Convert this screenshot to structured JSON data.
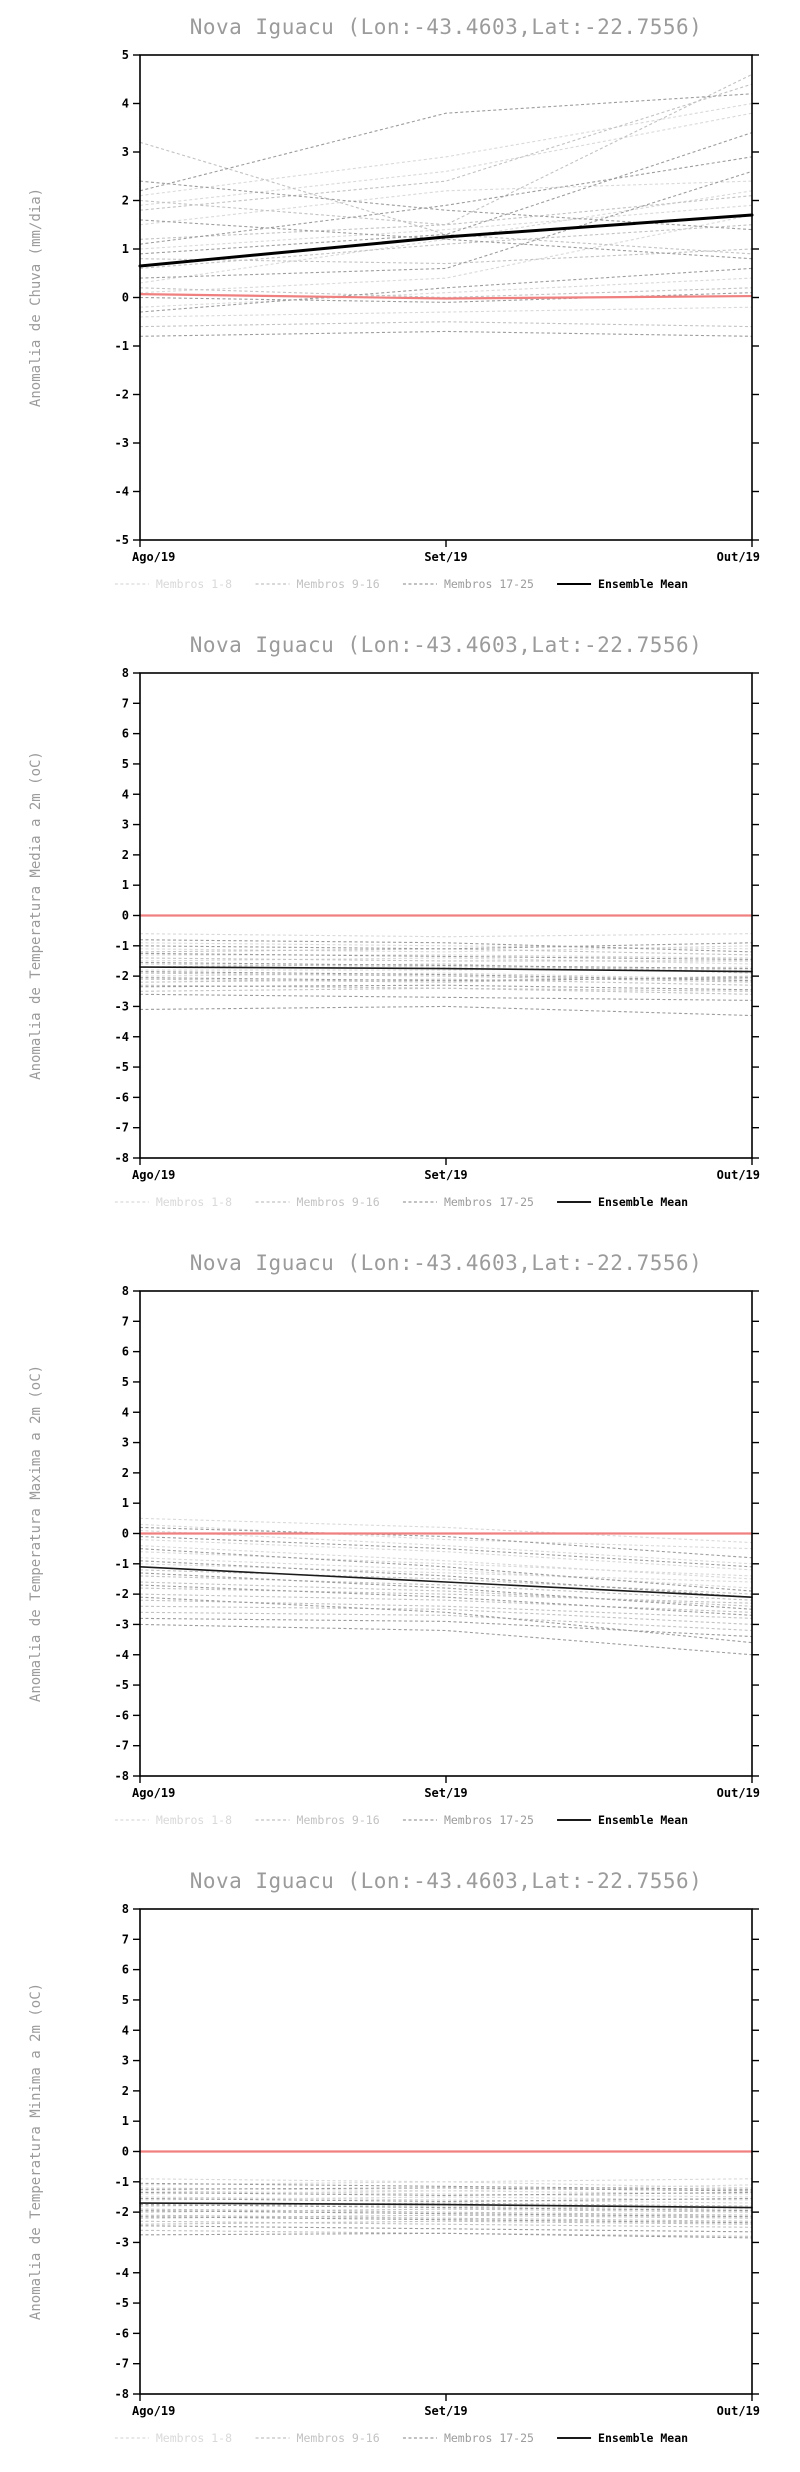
{
  "station": {
    "name": "Nova Iguacu",
    "lon": "-43.4603",
    "lat": "-22.7556"
  },
  "colors": {
    "title": "#9b9b9b",
    "axis": "#000000",
    "reference_red": "#f08080",
    "mean_black": "#000000",
    "group1": "#d9d9d9",
    "group2": "#c2c2c2",
    "group3": "#9c9c9c"
  },
  "chart_data": [
    {
      "type": "line",
      "title": "Nova Iguacu (Lon:-43.4603,Lat:-22.7556)",
      "ylabel": "Anomalia de Chuva (mm/dia)",
      "x_labels": [
        "Ago/19",
        "Set/19",
        "Out/19"
      ],
      "ylim": [
        -5,
        5
      ],
      "ytick_step": 1,
      "grid": false,
      "legend_position": "bottom",
      "groups": [
        {
          "label": "Membros 1-8",
          "color": "#d9d9d9",
          "range": [
            0,
            8
          ]
        },
        {
          "label": "Membros 9-16",
          "color": "#c2c2c2",
          "range": [
            8,
            16
          ]
        },
        {
          "label": "Membros 17-25",
          "color": "#9c9c9c",
          "range": [
            16,
            25
          ]
        }
      ],
      "mean": {
        "label": "Ensemble Mean",
        "color": "#000000",
        "width": 3,
        "values": [
          0.65,
          1.25,
          1.7
        ]
      },
      "reference": {
        "color": "#f08080",
        "width": 2.2,
        "values": [
          0.07,
          -0.02,
          0.03
        ]
      },
      "members": [
        [
          1.9,
          2.6,
          3.8
        ],
        [
          2.1,
          2.9,
          4.0
        ],
        [
          1.5,
          2.2,
          2.4
        ],
        [
          0.3,
          1.2,
          2.2
        ],
        [
          -0.2,
          0.1,
          0.4
        ],
        [
          -0.4,
          -0.3,
          -0.2
        ],
        [
          0.1,
          0.4,
          1.7
        ],
        [
          1.0,
          1.4,
          1.9
        ],
        [
          3.2,
          1.3,
          0.9
        ],
        [
          2.0,
          1.5,
          4.6
        ],
        [
          1.8,
          2.4,
          4.4
        ],
        [
          0.6,
          1.1,
          1.5
        ],
        [
          -0.6,
          -0.5,
          -0.6
        ],
        [
          0.2,
          0.0,
          0.2
        ],
        [
          1.2,
          1.5,
          2.1
        ],
        [
          0.8,
          0.7,
          1.0
        ],
        [
          2.2,
          3.8,
          4.2
        ],
        [
          1.6,
          1.2,
          0.8
        ],
        [
          -0.8,
          -0.7,
          -0.8
        ],
        [
          0.4,
          0.6,
          2.6
        ],
        [
          1.1,
          1.9,
          2.9
        ],
        [
          0.0,
          -0.1,
          0.1
        ],
        [
          2.4,
          1.8,
          1.4
        ],
        [
          0.9,
          1.3,
          3.4
        ],
        [
          -0.3,
          0.2,
          0.6
        ]
      ]
    },
    {
      "type": "line",
      "title": "Nova Iguacu (Lon:-43.4603,Lat:-22.7556)",
      "ylabel": "Anomalia de Temperatura Media a 2m (oC)",
      "x_labels": [
        "Ago/19",
        "Set/19",
        "Out/19"
      ],
      "ylim": [
        -8,
        8
      ],
      "ytick_step": 1,
      "grid": false,
      "legend_position": "bottom",
      "groups": [
        {
          "label": "Membros 1-8",
          "color": "#d9d9d9",
          "range": [
            0,
            8
          ]
        },
        {
          "label": "Membros 9-16",
          "color": "#c2c2c2",
          "range": [
            8,
            16
          ]
        },
        {
          "label": "Membros 17-25",
          "color": "#9c9c9c",
          "range": [
            16,
            25
          ]
        }
      ],
      "mean": {
        "label": "Ensemble Mean",
        "color": "#1a1a1a",
        "width": 1.6,
        "values": [
          -1.7,
          -1.75,
          -1.85
        ]
      },
      "reference": {
        "color": "#f08080",
        "width": 2.2,
        "values": [
          0,
          0,
          0
        ]
      },
      "members": [
        [
          -0.6,
          -0.7,
          -0.6
        ],
        [
          -0.9,
          -1.0,
          -1.1
        ],
        [
          -1.1,
          -1.2,
          -1.0
        ],
        [
          -1.3,
          -1.3,
          -1.4
        ],
        [
          -1.5,
          -1.4,
          -1.6
        ],
        [
          -1.6,
          -1.7,
          -1.8
        ],
        [
          -1.8,
          -1.8,
          -1.7
        ],
        [
          -2.0,
          -1.9,
          -2.1
        ],
        [
          -2.1,
          -2.2,
          -2.0
        ],
        [
          -2.2,
          -2.1,
          -2.3
        ],
        [
          -2.3,
          -2.4,
          -2.5
        ],
        [
          -1.2,
          -1.1,
          -1.3
        ],
        [
          -1.4,
          -1.5,
          -1.5
        ],
        [
          -1.7,
          -1.6,
          -1.9
        ],
        [
          -1.9,
          -2.0,
          -2.2
        ],
        [
          -2.5,
          -2.4,
          -2.6
        ],
        [
          -0.8,
          -0.9,
          -1.2
        ],
        [
          -1.0,
          -1.1,
          -0.9
        ],
        [
          -2.6,
          -2.7,
          -2.8
        ],
        [
          -3.1,
          -3.0,
          -3.3
        ],
        [
          -1.55,
          -1.65,
          -1.75
        ],
        [
          -2.05,
          -2.15,
          -2.05
        ],
        [
          -1.25,
          -1.35,
          -1.45
        ],
        [
          -1.85,
          -1.95,
          -2.15
        ],
        [
          -2.35,
          -2.3,
          -2.45
        ]
      ]
    },
    {
      "type": "line",
      "title": "Nova Iguacu (Lon:-43.4603,Lat:-22.7556)",
      "ylabel": "Anomalia de Temperatura Maxima a 2m (oC)",
      "x_labels": [
        "Ago/19",
        "Set/19",
        "Out/19"
      ],
      "ylim": [
        -8,
        8
      ],
      "ytick_step": 1,
      "grid": false,
      "legend_position": "bottom",
      "groups": [
        {
          "label": "Membros 1-8",
          "color": "#d9d9d9",
          "range": [
            0,
            8
          ]
        },
        {
          "label": "Membros 9-16",
          "color": "#c2c2c2",
          "range": [
            8,
            16
          ]
        },
        {
          "label": "Membros 17-25",
          "color": "#9c9c9c",
          "range": [
            16,
            25
          ]
        }
      ],
      "mean": {
        "label": "Ensemble Mean",
        "color": "#1a1a1a",
        "width": 1.6,
        "values": [
          -1.1,
          -1.6,
          -2.1
        ]
      },
      "reference": {
        "color": "#f08080",
        "width": 2.2,
        "values": [
          0,
          0,
          0
        ]
      },
      "members": [
        [
          0.5,
          0.2,
          -0.3
        ],
        [
          0.3,
          -0.2,
          -0.5
        ],
        [
          0.1,
          -0.4,
          -1.0
        ],
        [
          -0.2,
          -0.6,
          -1.2
        ],
        [
          -0.4,
          -0.9,
          -1.5
        ],
        [
          -0.6,
          -1.0,
          -1.4
        ],
        [
          -0.8,
          -1.2,
          -1.8
        ],
        [
          -1.0,
          -1.3,
          -1.6
        ],
        [
          -1.2,
          -1.5,
          -2.0
        ],
        [
          -1.4,
          -1.7,
          -2.2
        ],
        [
          -1.6,
          -1.9,
          -2.4
        ],
        [
          -1.8,
          -2.0,
          -2.3
        ],
        [
          -2.0,
          -2.2,
          -2.6
        ],
        [
          -2.2,
          -2.4,
          -2.8
        ],
        [
          -2.4,
          -2.5,
          -3.0
        ],
        [
          -2.6,
          -2.7,
          -3.2
        ],
        [
          -2.8,
          -2.9,
          -3.4
        ],
        [
          -3.0,
          -3.2,
          -4.0
        ],
        [
          0.2,
          -0.1,
          -0.8
        ],
        [
          -0.1,
          -0.5,
          -1.1
        ],
        [
          -0.5,
          -1.1,
          -1.9
        ],
        [
          -0.9,
          -1.4,
          -2.1
        ],
        [
          -1.3,
          -1.8,
          -2.5
        ],
        [
          -1.7,
          -2.1,
          -2.7
        ],
        [
          -2.1,
          -2.6,
          -3.6
        ]
      ]
    },
    {
      "type": "line",
      "title": "Nova Iguacu (Lon:-43.4603,Lat:-22.7556)",
      "ylabel": "Anomalia de Temperatura Minima a 2m (oC)",
      "x_labels": [
        "Ago/19",
        "Set/19",
        "Out/19"
      ],
      "ylim": [
        -8,
        8
      ],
      "ytick_step": 1,
      "grid": false,
      "legend_position": "bottom",
      "groups": [
        {
          "label": "Membros 1-8",
          "color": "#d9d9d9",
          "range": [
            0,
            8
          ]
        },
        {
          "label": "Membros 9-16",
          "color": "#c2c2c2",
          "range": [
            8,
            16
          ]
        },
        {
          "label": "Membros 17-25",
          "color": "#9c9c9c",
          "range": [
            16,
            25
          ]
        }
      ],
      "mean": {
        "label": "Ensemble Mean",
        "color": "#1a1a1a",
        "width": 1.6,
        "values": [
          -1.7,
          -1.75,
          -1.85
        ]
      },
      "reference": {
        "color": "#f08080",
        "width": 2.2,
        "values": [
          0,
          0,
          0
        ]
      },
      "members": [
        [
          -0.9,
          -1.0,
          -0.9
        ],
        [
          -1.1,
          -1.0,
          -1.2
        ],
        [
          -1.2,
          -1.3,
          -1.1
        ],
        [
          -1.3,
          -1.4,
          -1.5
        ],
        [
          -1.4,
          -1.3,
          -1.4
        ],
        [
          -1.5,
          -1.6,
          -1.7
        ],
        [
          -1.6,
          -1.5,
          -1.6
        ],
        [
          -1.7,
          -1.8,
          -1.9
        ],
        [
          -1.8,
          -1.7,
          -1.8
        ],
        [
          -1.9,
          -2.0,
          -2.1
        ],
        [
          -2.0,
          -1.9,
          -2.0
        ],
        [
          -2.1,
          -2.2,
          -2.3
        ],
        [
          -2.2,
          -2.1,
          -2.2
        ],
        [
          -2.3,
          -2.4,
          -2.5
        ],
        [
          -2.4,
          -2.3,
          -2.4
        ],
        [
          -2.6,
          -2.7,
          -2.8
        ],
        [
          -1.05,
          -1.15,
          -1.25
        ],
        [
          -1.35,
          -1.45,
          -1.35
        ],
        [
          -1.55,
          -1.65,
          -1.55
        ],
        [
          -1.75,
          -1.85,
          -1.95
        ],
        [
          -1.95,
          -2.05,
          -2.15
        ],
        [
          -2.15,
          -2.25,
          -2.35
        ],
        [
          -2.45,
          -2.55,
          -2.65
        ],
        [
          -2.75,
          -2.7,
          -2.85
        ],
        [
          -1.25,
          -1.2,
          -1.3
        ]
      ]
    }
  ]
}
